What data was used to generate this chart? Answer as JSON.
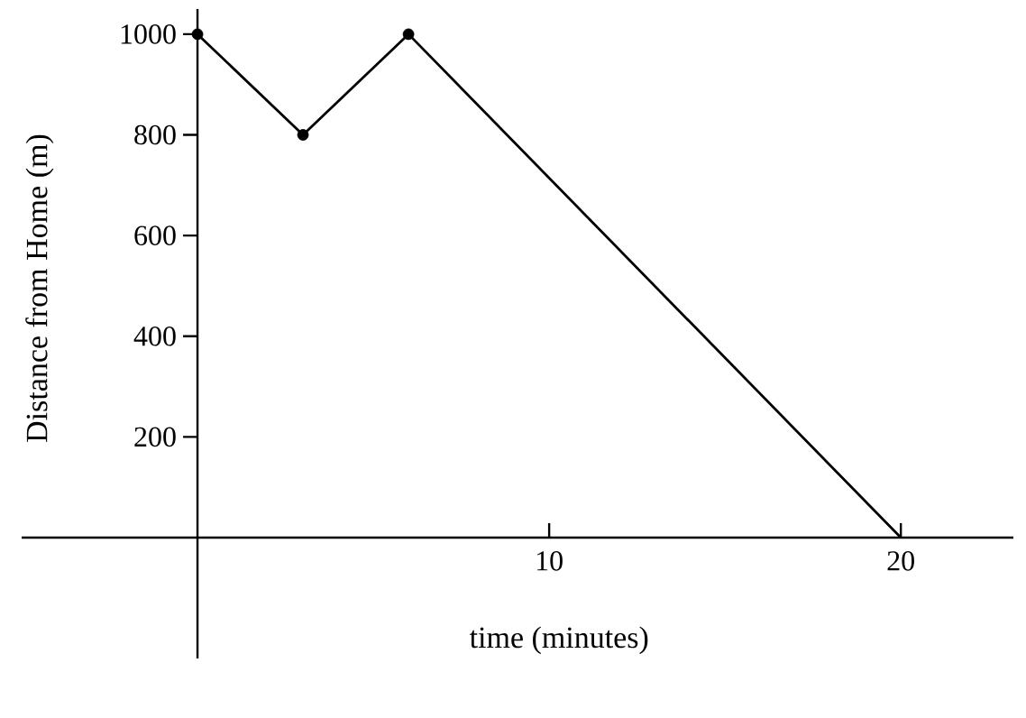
{
  "chart_data": {
    "type": "line",
    "xlabel": "time (minutes)",
    "ylabel": "Distance from Home (m)",
    "x": [
      0,
      3,
      6,
      20
    ],
    "series": [
      {
        "color": "#000000",
        "values": [
          1000,
          800,
          1000,
          0
        ]
      },
      {
        "type": "scatter",
        "color": "#000000",
        "x": [
          0,
          3,
          6
        ],
        "values": [
          1000,
          800,
          1000
        ],
        "marker": "circle"
      }
    ],
    "xlim": [
      -5,
      23.2
    ],
    "ylim": [
      -240,
      1050
    ],
    "xticks": [
      10,
      20
    ],
    "yticks": [
      200,
      400,
      600,
      800,
      1000
    ]
  }
}
